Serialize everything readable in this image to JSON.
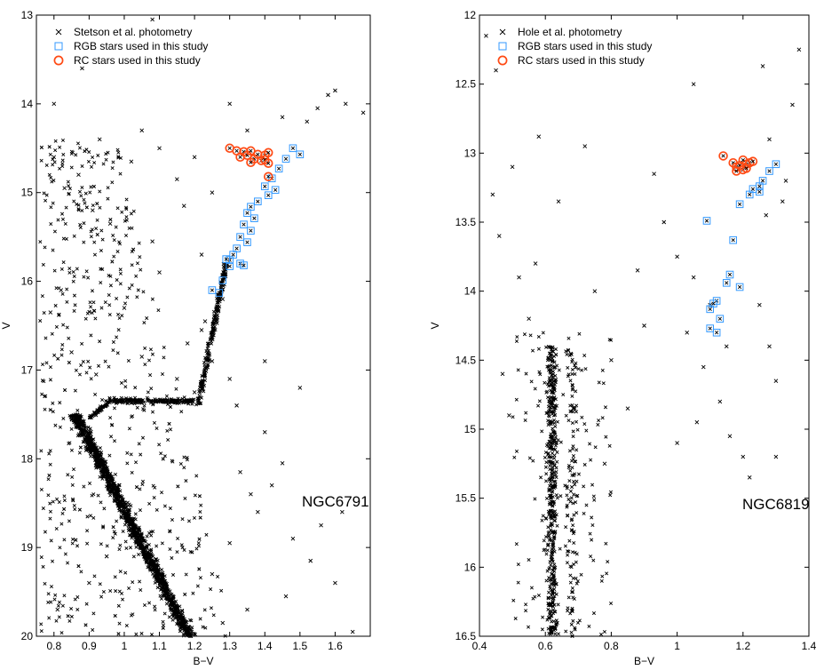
{
  "chart_data": [
    {
      "type": "scatter",
      "xlabel": "B−V",
      "ylabel": "V",
      "xlim": [
        0.75,
        1.7
      ],
      "ylim": [
        13,
        20
      ],
      "y_inverted": true,
      "xticks": [
        "0.8",
        "0.9",
        "1",
        "1.1",
        "1.2",
        "1.3",
        "1.4",
        "1.5",
        "1.6"
      ],
      "xtick_values": [
        0.8,
        0.9,
        1.0,
        1.1,
        1.2,
        1.3,
        1.4,
        1.5,
        1.6
      ],
      "yticks": [
        "13",
        "14",
        "15",
        "16",
        "17",
        "18",
        "19",
        "20"
      ],
      "ytick_values": [
        13,
        14,
        15,
        16,
        17,
        18,
        19,
        20
      ],
      "annotation": "NGC6791",
      "legend_position": "top-left",
      "grid": false,
      "series": [
        {
          "name": "Stetson et al. photometry",
          "marker": "x",
          "color": "#000000",
          "points": [
            [
              1.08,
              13.05
            ],
            [
              0.88,
              13.6
            ],
            [
              0.8,
              14.0
            ],
            [
              1.05,
              14.3
            ],
            [
              0.93,
              14.4
            ],
            [
              1.1,
              14.5
            ],
            [
              1.2,
              14.6
            ],
            [
              1.02,
              14.65
            ],
            [
              0.87,
              14.8
            ],
            [
              1.15,
              14.85
            ],
            [
              0.83,
              14.95
            ],
            [
              1.25,
              15.0
            ],
            [
              1.3,
              14.0
            ],
            [
              1.35,
              14.3
            ],
            [
              1.45,
              14.15
            ],
            [
              1.55,
              14.05
            ],
            [
              1.6,
              13.85
            ],
            [
              1.63,
              14.0
            ],
            [
              1.68,
              14.1
            ],
            [
              1.58,
              13.9
            ],
            [
              1.52,
              14.2
            ],
            [
              0.8,
              14.6
            ],
            [
              0.91,
              15.2
            ],
            [
              1.17,
              15.15
            ],
            [
              0.96,
              15.35
            ],
            [
              1.08,
              15.55
            ],
            [
              1.22,
              15.7
            ],
            [
              1.1,
              15.9
            ],
            [
              0.82,
              16.1
            ],
            [
              0.79,
              16.35
            ],
            [
              1.0,
              16.3
            ],
            [
              1.28,
              16.2
            ],
            [
              1.23,
              16.45
            ],
            [
              1.18,
              16.7
            ],
            [
              1.25,
              16.9
            ],
            [
              1.3,
              17.1
            ],
            [
              1.32,
              17.4
            ],
            [
              1.4,
              17.7
            ],
            [
              1.45,
              18.05
            ],
            [
              1.42,
              18.3
            ],
            [
              1.38,
              18.6
            ],
            [
              1.48,
              18.9
            ],
            [
              1.53,
              19.15
            ],
            [
              1.6,
              19.4
            ],
            [
              1.35,
              19.7
            ],
            [
              1.65,
              19.95
            ],
            [
              1.28,
              19.85
            ],
            [
              1.56,
              18.75
            ],
            [
              1.62,
              18.6
            ],
            [
              1.5,
              17.2
            ],
            [
              1.4,
              16.9
            ],
            [
              0.85,
              16.8
            ],
            [
              0.92,
              17.05
            ],
            [
              1.05,
              16.85
            ],
            [
              1.22,
              16.55
            ],
            [
              1.15,
              17.1
            ],
            [
              1.2,
              17.25
            ],
            [
              0.9,
              19.4
            ],
            [
              0.81,
              19.7
            ],
            [
              0.95,
              19.1
            ],
            [
              1.3,
              18.95
            ],
            [
              1.25,
              19.3
            ],
            [
              1.36,
              18.4
            ],
            [
              1.33,
              18.15
            ],
            [
              1.46,
              19.55
            ]
          ]
        },
        {
          "name": "RGB stars used in this study",
          "marker": "square",
          "color": "#3399ff",
          "points": [
            [
              1.48,
              14.5
            ],
            [
              1.46,
              14.62
            ],
            [
              1.5,
              14.57
            ],
            [
              1.44,
              14.73
            ],
            [
              1.42,
              14.84
            ],
            [
              1.43,
              14.97
            ],
            [
              1.4,
              14.93
            ],
            [
              1.41,
              15.03
            ],
            [
              1.38,
              15.1
            ],
            [
              1.36,
              15.16
            ],
            [
              1.35,
              15.23
            ],
            [
              1.37,
              15.29
            ],
            [
              1.34,
              15.36
            ],
            [
              1.36,
              15.43
            ],
            [
              1.33,
              15.5
            ],
            [
              1.35,
              15.56
            ],
            [
              1.32,
              15.63
            ],
            [
              1.31,
              15.7
            ],
            [
              1.3,
              15.76
            ],
            [
              1.33,
              15.8
            ],
            [
              1.3,
              15.83
            ],
            [
              1.28,
              15.99
            ],
            [
              1.27,
              16.13
            ],
            [
              1.25,
              16.1
            ],
            [
              1.34,
              15.82
            ],
            [
              1.29,
              15.75
            ]
          ]
        },
        {
          "name": "RC stars used in this study",
          "marker": "circle",
          "color": "#ff4a14",
          "points": [
            [
              1.3,
              14.5
            ],
            [
              1.32,
              14.53
            ],
            [
              1.34,
              14.54
            ],
            [
              1.35,
              14.58
            ],
            [
              1.36,
              14.53
            ],
            [
              1.37,
              14.62
            ],
            [
              1.38,
              14.57
            ],
            [
              1.33,
              14.6
            ],
            [
              1.39,
              14.64
            ],
            [
              1.4,
              14.58
            ],
            [
              1.36,
              14.66
            ],
            [
              1.41,
              14.55
            ],
            [
              1.4,
              14.63
            ],
            [
              1.41,
              14.67
            ],
            [
              1.41,
              14.82
            ]
          ]
        }
      ]
    },
    {
      "type": "scatter",
      "xlabel": "B−V",
      "ylabel": "V",
      "xlim": [
        0.4,
        1.4
      ],
      "ylim": [
        12,
        16.5
      ],
      "y_inverted": true,
      "xticks": [
        "0.4",
        "0.6",
        "0.8",
        "1",
        "1.2",
        "1.4"
      ],
      "xtick_values": [
        0.4,
        0.6,
        0.8,
        1.0,
        1.2,
        1.4
      ],
      "yticks": [
        "12",
        "12.5",
        "13",
        "13.5",
        "14",
        "14.5",
        "15",
        "15.5",
        "16",
        "16.5"
      ],
      "ytick_values": [
        12,
        12.5,
        13,
        13.5,
        14,
        14.5,
        15,
        15.5,
        16,
        16.5
      ],
      "annotation": "NGC6819",
      "legend_position": "top-left",
      "grid": false,
      "series": [
        {
          "name": "Hole et al. photometry",
          "marker": "x",
          "color": "#000000",
          "points": [
            [
              0.42,
              12.15
            ],
            [
              0.45,
              12.4
            ],
            [
              1.05,
              12.5
            ],
            [
              1.26,
              12.37
            ],
            [
              1.37,
              12.25
            ],
            [
              0.5,
              13.1
            ],
            [
              0.44,
              13.3
            ],
            [
              0.57,
              13.8
            ],
            [
              0.55,
              14.2
            ],
            [
              0.47,
              14.6
            ],
            [
              0.49,
              14.9
            ],
            [
              0.46,
              13.6
            ],
            [
              0.52,
              13.9
            ],
            [
              0.64,
              13.35
            ],
            [
              0.72,
              12.95
            ],
            [
              0.93,
              13.15
            ],
            [
              0.96,
              13.5
            ],
            [
              1.0,
              13.75
            ],
            [
              1.03,
              14.3
            ],
            [
              1.08,
              14.55
            ],
            [
              1.13,
              14.8
            ],
            [
              1.16,
              15.05
            ],
            [
              1.0,
              15.1
            ],
            [
              1.06,
              14.95
            ],
            [
              1.2,
              15.2
            ],
            [
              1.3,
              15.2
            ],
            [
              1.22,
              15.35
            ],
            [
              1.15,
              14.4
            ],
            [
              1.1,
              14.1
            ],
            [
              1.05,
              13.9
            ],
            [
              1.27,
              13.45
            ],
            [
              1.32,
              13.35
            ],
            [
              1.33,
              13.2
            ],
            [
              1.35,
              12.65
            ],
            [
              1.28,
              12.9
            ],
            [
              1.25,
              14.1
            ],
            [
              1.28,
              14.4
            ],
            [
              1.3,
              14.65
            ],
            [
              0.8,
              14.5
            ],
            [
              0.85,
              14.85
            ],
            [
              0.78,
              15.25
            ],
            [
              0.9,
              14.25
            ],
            [
              0.88,
              13.85
            ],
            [
              0.75,
              14.0
            ],
            [
              0.58,
              12.88
            ]
          ]
        },
        {
          "name": "RGB stars used in this study",
          "marker": "square",
          "color": "#3399ff",
          "points": [
            [
              1.3,
              13.08
            ],
            [
              1.28,
              13.13
            ],
            [
              1.26,
              13.2
            ],
            [
              1.25,
              13.24
            ],
            [
              1.23,
              13.26
            ],
            [
              1.25,
              13.28
            ],
            [
              1.22,
              13.3
            ],
            [
              1.19,
              13.37
            ],
            [
              1.09,
              13.49
            ],
            [
              1.17,
              13.63
            ],
            [
              1.16,
              13.88
            ],
            [
              1.15,
              13.94
            ],
            [
              1.19,
              13.97
            ],
            [
              1.12,
              14.07
            ],
            [
              1.11,
              14.09
            ],
            [
              1.1,
              14.13
            ],
            [
              1.13,
              14.2
            ],
            [
              1.1,
              14.27
            ],
            [
              1.12,
              14.3
            ]
          ]
        },
        {
          "name": "RC stars used in this study",
          "marker": "circle",
          "color": "#ff4a14",
          "points": [
            [
              1.14,
              13.02
            ],
            [
              1.17,
              13.07
            ],
            [
              1.18,
              13.1
            ],
            [
              1.19,
              13.09
            ],
            [
              1.2,
              13.12
            ],
            [
              1.21,
              13.08
            ],
            [
              1.22,
              13.07
            ],
            [
              1.23,
              13.06
            ],
            [
              1.2,
              13.05
            ],
            [
              1.18,
              13.13
            ],
            [
              1.21,
              13.11
            ]
          ]
        }
      ]
    }
  ]
}
